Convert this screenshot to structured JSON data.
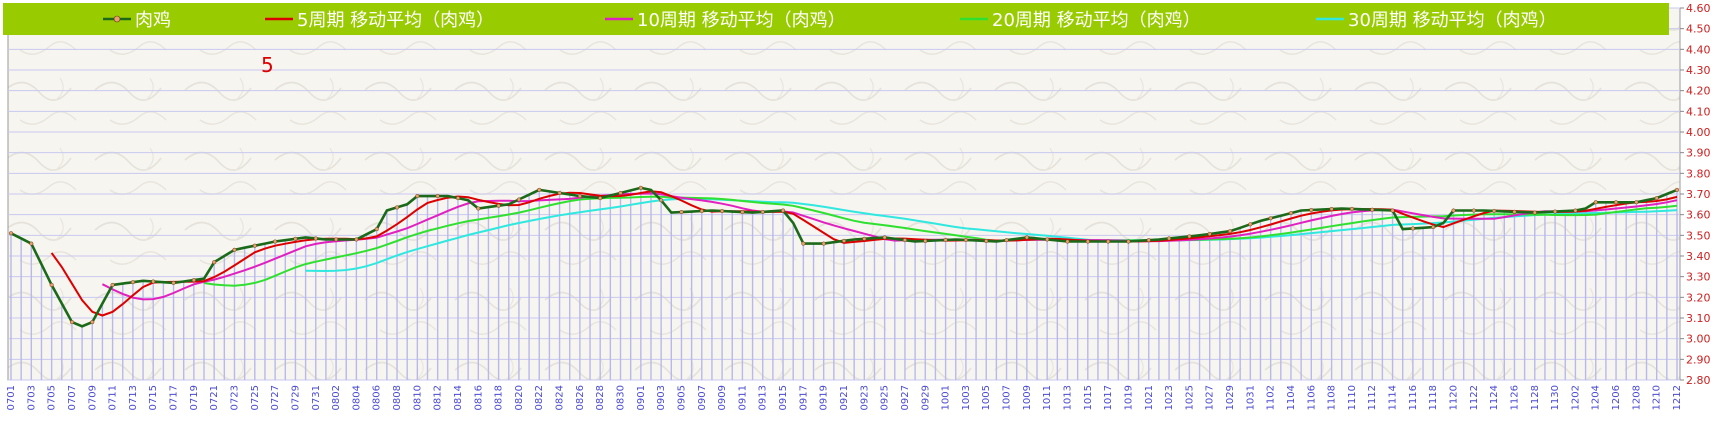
{
  "chart_data": {
    "type": "line",
    "annotation": "5",
    "ylim": [
      2.8,
      4.6
    ],
    "y_ticks": [
      "2.80",
      "2.90",
      "3.00",
      "3.10",
      "3.20",
      "3.30",
      "3.40",
      "3.50",
      "3.60",
      "3.70",
      "3.80",
      "3.90",
      "4.00",
      "4.10",
      "4.20",
      "4.30",
      "4.40",
      "4.50",
      "4.60"
    ],
    "x_labels": [
      "0701",
      "0703",
      "0705",
      "0707",
      "0709",
      "0711",
      "0713",
      "0715",
      "0717",
      "0719",
      "0721",
      "0723",
      "0725",
      "0727",
      "0729",
      "0731",
      "0802",
      "0804",
      "0806",
      "0808",
      "0810",
      "0812",
      "0814",
      "0816",
      "0818",
      "0820",
      "0822",
      "0824",
      "0826",
      "0828",
      "0830",
      "0901",
      "0903",
      "0905",
      "0907",
      "0909",
      "0911",
      "0913",
      "0915",
      "0917",
      "0919",
      "0921",
      "0923",
      "0925",
      "0927",
      "0929",
      "1001",
      "1003",
      "1005",
      "1007",
      "1009",
      "1011",
      "1013",
      "1015",
      "1017",
      "1019",
      "1021",
      "1023",
      "1025",
      "1027",
      "1029",
      "1031",
      "1102",
      "1104",
      "1106",
      "1108",
      "1110",
      "1112",
      "1114",
      "1116",
      "1118",
      "1120",
      "1122",
      "1124",
      "1126",
      "1128",
      "1130",
      "1202",
      "1204",
      "1206",
      "1208",
      "1210",
      "1212"
    ],
    "day_count": 165,
    "price_keypoints": [
      [
        0,
        3.51
      ],
      [
        2,
        3.46
      ],
      [
        4,
        3.26
      ],
      [
        6,
        3.08
      ],
      [
        7,
        3.06
      ],
      [
        8,
        3.08
      ],
      [
        9,
        3.17
      ],
      [
        10,
        3.26
      ],
      [
        13,
        3.28
      ],
      [
        16,
        3.27
      ],
      [
        19,
        3.29
      ],
      [
        20,
        3.37
      ],
      [
        22,
        3.43
      ],
      [
        26,
        3.47
      ],
      [
        29,
        3.49
      ],
      [
        31,
        3.48
      ],
      [
        34,
        3.48
      ],
      [
        36,
        3.53
      ],
      [
        37,
        3.62
      ],
      [
        39,
        3.65
      ],
      [
        40,
        3.69
      ],
      [
        43,
        3.69
      ],
      [
        45,
        3.67
      ],
      [
        46,
        3.63
      ],
      [
        49,
        3.65
      ],
      [
        52,
        3.72
      ],
      [
        56,
        3.69
      ],
      [
        58,
        3.68
      ],
      [
        62,
        3.73
      ],
      [
        63,
        3.72
      ],
      [
        64,
        3.67
      ],
      [
        65,
        3.61
      ],
      [
        69,
        3.62
      ],
      [
        73,
        3.61
      ],
      [
        76,
        3.62
      ],
      [
        77,
        3.56
      ],
      [
        78,
        3.46
      ],
      [
        80,
        3.46
      ],
      [
        83,
        3.48
      ],
      [
        86,
        3.49
      ],
      [
        89,
        3.47
      ],
      [
        93,
        3.48
      ],
      [
        97,
        3.47
      ],
      [
        100,
        3.49
      ],
      [
        104,
        3.47
      ],
      [
        107,
        3.47
      ],
      [
        110,
        3.47
      ],
      [
        113,
        3.48
      ],
      [
        117,
        3.5
      ],
      [
        120,
        3.52
      ],
      [
        123,
        3.57
      ],
      [
        127,
        3.62
      ],
      [
        131,
        3.63
      ],
      [
        136,
        3.62
      ],
      [
        137,
        3.53
      ],
      [
        140,
        3.54
      ],
      [
        141,
        3.56
      ],
      [
        142,
        3.62
      ],
      [
        145,
        3.62
      ],
      [
        150,
        3.61
      ],
      [
        154,
        3.62
      ],
      [
        155,
        3.63
      ],
      [
        156,
        3.66
      ],
      [
        160,
        3.66
      ],
      [
        162,
        3.68
      ],
      [
        163,
        3.7
      ],
      [
        164,
        3.72
      ],
      [
        165,
        3.74
      ]
    ],
    "series": [
      {
        "name": "肉鸡",
        "color": "#1a6a1a",
        "marker_color": "#e8a070"
      },
      {
        "name": "5周期 移动平均（肉鸡）",
        "color": "#dd0000",
        "period": 5
      },
      {
        "name": "10周期 移动平均（肉鸡）",
        "color": "#e020c0",
        "period": 10
      },
      {
        "name": "20周期 移动平均（肉鸡）",
        "color": "#30e030",
        "period": 20
      },
      {
        "name": "30周期 移动平均（肉鸡）",
        "color": "#30e8e0",
        "period": 30
      }
    ],
    "colors": {
      "legend_bg": "#99cc00",
      "plot_bg": "#f7f5ef",
      "bars": "#b8b8ec",
      "grid": "#c8c8f0",
      "y_tick_text": "#cc2020",
      "x_tick_text": "#4a4ad0",
      "annotation": "#dd0000"
    }
  }
}
